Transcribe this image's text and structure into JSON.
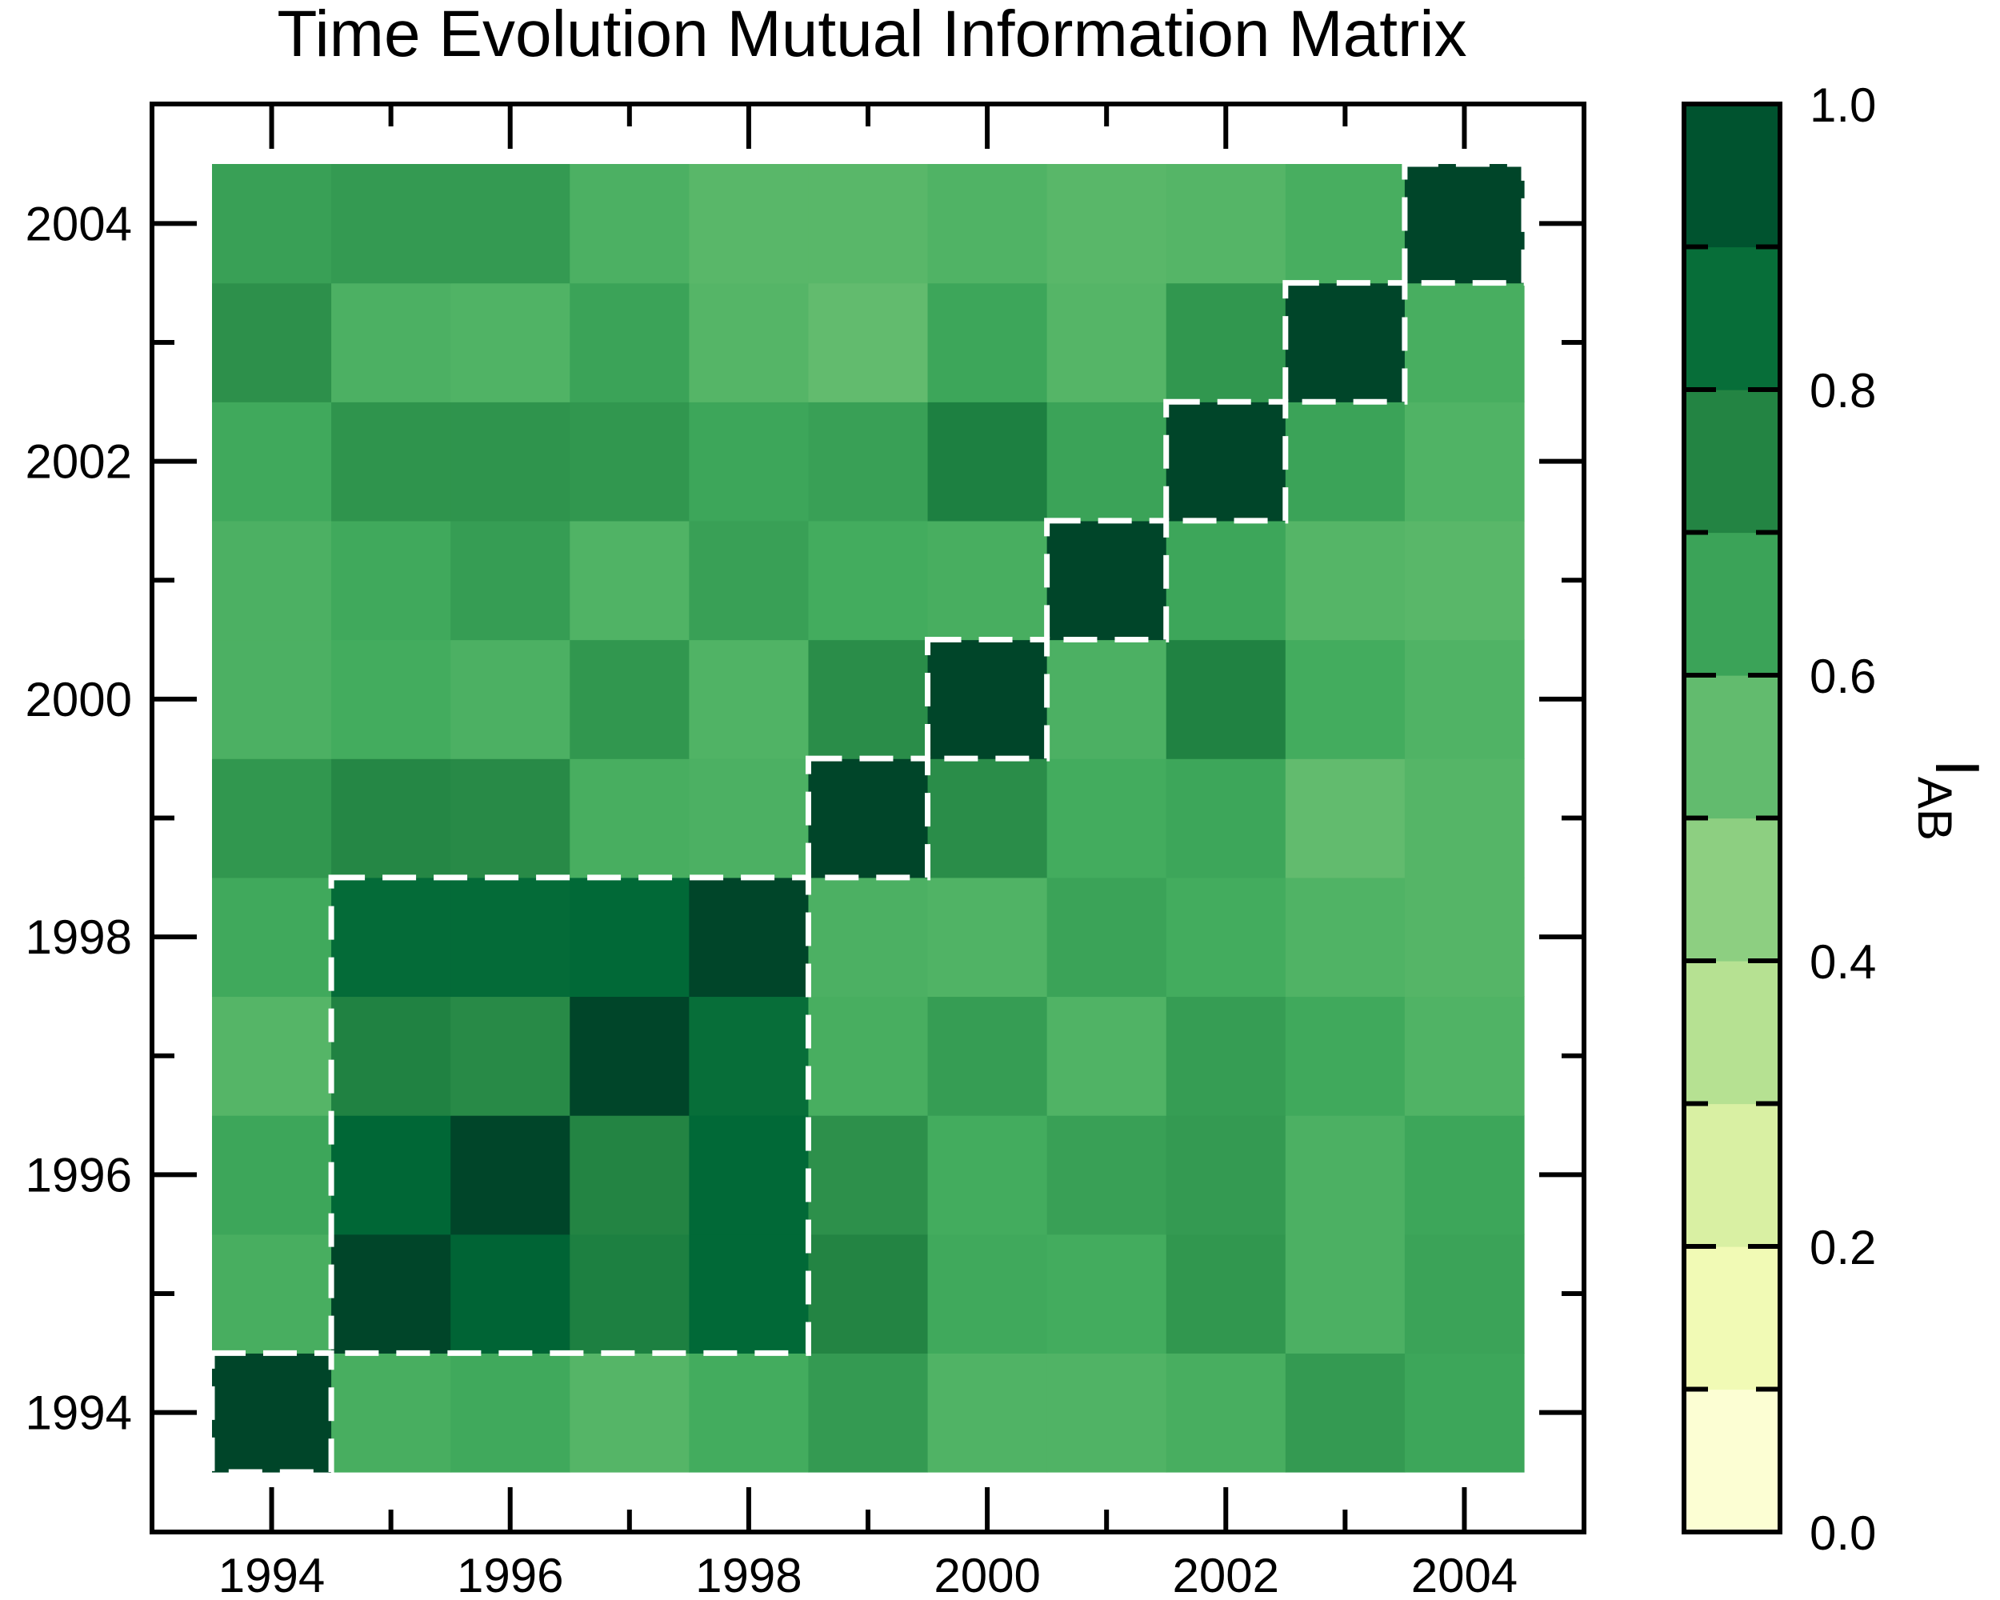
{
  "chart_data": {
    "type": "heatmap",
    "title": "Time Evolution Mutual Information Matrix",
    "x_categories": [
      1994,
      1995,
      1996,
      1997,
      1998,
      1999,
      2000,
      2001,
      2002,
      2003,
      2004
    ],
    "y_categories": [
      1994,
      1995,
      1996,
      1997,
      1998,
      1999,
      2000,
      2001,
      2002,
      2003,
      2004
    ],
    "x_tick_labels": [
      "1994",
      "1996",
      "1998",
      "2000",
      "2002",
      "2004"
    ],
    "y_tick_labels": [
      "1994",
      "1996",
      "1998",
      "2000",
      "2002",
      "2004"
    ],
    "values_rows_bottom_to_top": [
      [
        1.0,
        0.61,
        0.63,
        0.58,
        0.62,
        0.68,
        0.59,
        0.59,
        0.61,
        0.68,
        0.64
      ],
      [
        0.61,
        1.0,
        0.89,
        0.77,
        0.87,
        0.75,
        0.63,
        0.62,
        0.69,
        0.6,
        0.65
      ],
      [
        0.64,
        0.88,
        1.0,
        0.75,
        0.87,
        0.71,
        0.62,
        0.66,
        0.68,
        0.6,
        0.64
      ],
      [
        0.58,
        0.76,
        0.73,
        1.0,
        0.85,
        0.61,
        0.67,
        0.59,
        0.67,
        0.63,
        0.59
      ],
      [
        0.63,
        0.86,
        0.86,
        0.87,
        1.0,
        0.6,
        0.59,
        0.65,
        0.62,
        0.59,
        0.58
      ],
      [
        0.69,
        0.74,
        0.73,
        0.61,
        0.6,
        1.0,
        0.72,
        0.62,
        0.64,
        0.55,
        0.58
      ],
      [
        0.6,
        0.62,
        0.6,
        0.69,
        0.59,
        0.72,
        1.0,
        0.6,
        0.76,
        0.62,
        0.59
      ],
      [
        0.6,
        0.63,
        0.67,
        0.59,
        0.66,
        0.62,
        0.61,
        1.0,
        0.64,
        0.58,
        0.57
      ],
      [
        0.63,
        0.7,
        0.7,
        0.69,
        0.64,
        0.66,
        0.77,
        0.65,
        1.0,
        0.65,
        0.59
      ],
      [
        0.71,
        0.6,
        0.59,
        0.65,
        0.58,
        0.55,
        0.64,
        0.58,
        0.69,
        1.0,
        0.61
      ],
      [
        0.66,
        0.68,
        0.68,
        0.6,
        0.57,
        0.57,
        0.59,
        0.57,
        0.58,
        0.61,
        1.0
      ]
    ],
    "xlim": [
      1993.5,
      2004.5
    ],
    "ylim": [
      1993.5,
      2004.5
    ],
    "grid": false,
    "highlight_boxes": [
      {
        "x": [
          1994,
          1994
        ],
        "y": [
          1994,
          1994
        ]
      },
      {
        "x": [
          1995,
          1998
        ],
        "y": [
          1995,
          1998
        ]
      },
      {
        "x": [
          1999,
          1999
        ],
        "y": [
          1999,
          1999
        ]
      },
      {
        "x": [
          2000,
          2000
        ],
        "y": [
          2000,
          2000
        ]
      },
      {
        "x": [
          2001,
          2001
        ],
        "y": [
          2001,
          2001
        ]
      },
      {
        "x": [
          2002,
          2002
        ],
        "y": [
          2002,
          2002
        ]
      },
      {
        "x": [
          2003,
          2003
        ],
        "y": [
          2003,
          2003
        ]
      },
      {
        "x": [
          2004,
          2004
        ],
        "y": [
          2004,
          2004
        ]
      }
    ],
    "colorbar": {
      "label": "I",
      "label_subscript": "AB",
      "range": [
        0.0,
        1.0
      ],
      "tick_values": [
        0.0,
        0.2,
        0.4,
        0.6,
        0.8,
        1.0
      ],
      "tick_labels": [
        "0.0",
        "0.2",
        "0.4",
        "0.6",
        "0.8",
        "1.0"
      ],
      "levels": 10,
      "colormap": "YlGn",
      "color_stops": [
        "#ffffe5",
        "#f7fcb9",
        "#d9f0a3",
        "#addd8e",
        "#78c679",
        "#41ab5d",
        "#238443",
        "#006837",
        "#004529"
      ]
    }
  }
}
